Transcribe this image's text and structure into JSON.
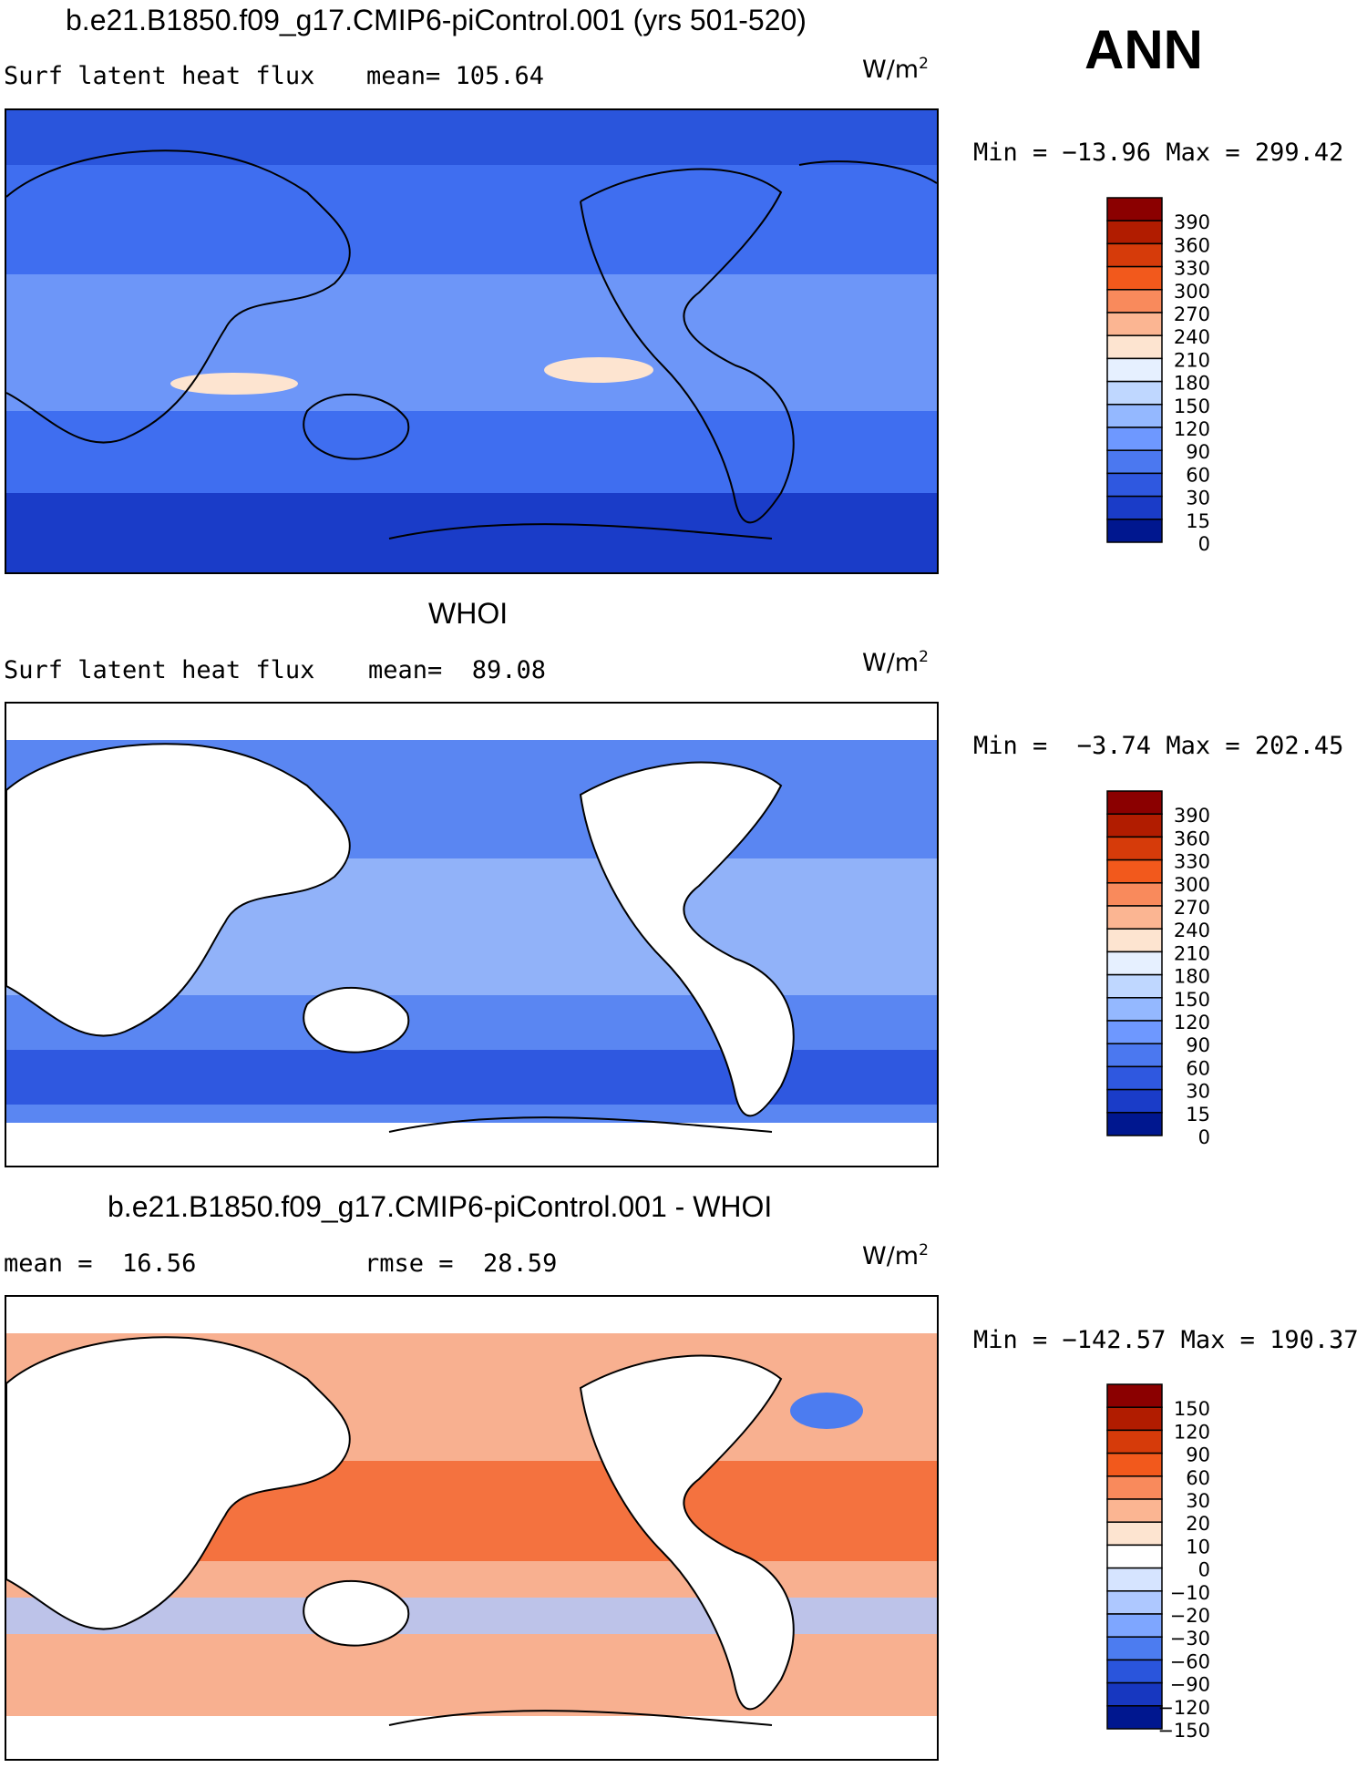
{
  "corner_label": "ANN",
  "panels": [
    {
      "id": "model",
      "title": "b.e21.B1850.f09_g17.CMIP6-piControl.001 (yrs 501-520)",
      "left_label": "Surf latent heat flux",
      "stat1": "mean= 105.64",
      "stat2": "",
      "units": "W/m",
      "units_sup": "2",
      "minmax": "Min = −13.96 Max = 299.42",
      "colorbar_labels": [
        "390",
        "360",
        "330",
        "300",
        "270",
        "240",
        "210",
        "180",
        "150",
        "120",
        "90",
        "60",
        "30",
        "15",
        "0"
      ],
      "colorbar_colors": [
        "#8b0000",
        "#b11c00",
        "#d63b0a",
        "#f2591c",
        "#f98a5c",
        "#fbb592",
        "#fde4d0",
        "#e6f0ff",
        "#bfd7ff",
        "#94b8ff",
        "#6e98ff",
        "#4b78f0",
        "#2f58e0",
        "#1a3cc8",
        "#00178f"
      ],
      "map_fill": "#3f6ef0"
    },
    {
      "id": "obs",
      "title": "WHOI",
      "left_label": "Surf latent heat flux",
      "stat1": "mean=  89.08",
      "stat2": "",
      "units": "W/m",
      "units_sup": "2",
      "minmax": "Min =  −3.74 Max = 202.45",
      "colorbar_labels": [
        "390",
        "360",
        "330",
        "300",
        "270",
        "240",
        "210",
        "180",
        "150",
        "120",
        "90",
        "60",
        "30",
        "15",
        "0"
      ],
      "colorbar_colors": [
        "#8b0000",
        "#b11c00",
        "#d63b0a",
        "#f2591c",
        "#f98a5c",
        "#fbb592",
        "#fde4d0",
        "#e6f0ff",
        "#bfd7ff",
        "#94b8ff",
        "#6e98ff",
        "#4b78f0",
        "#2f58e0",
        "#1a3cc8",
        "#00178f"
      ],
      "map_fill": "#5a86f2"
    },
    {
      "id": "diff",
      "title": "b.e21.B1850.f09_g17.CMIP6-piControl.001 - WHOI",
      "left_label": "mean =  16.56",
      "stat1": "rmse =  28.59",
      "stat2": "",
      "units": "W/m",
      "units_sup": "2",
      "minmax": "Min = −142.57 Max = 190.37",
      "colorbar_labels": [
        "150",
        "120",
        "90",
        "60",
        "30",
        "20",
        "10",
        "0",
        "−10",
        "−20",
        "−30",
        "−60",
        "−90",
        "−120",
        "−150"
      ],
      "colorbar_colors": [
        "#8b0000",
        "#b11c00",
        "#d63b0a",
        "#f2591c",
        "#f98a5c",
        "#fbb592",
        "#fde4d0",
        "#ffffff",
        "#d6e4ff",
        "#aec8ff",
        "#7ea6ff",
        "#4c7cf0",
        "#2a55dc",
        "#1737c0",
        "#00178f"
      ],
      "map_fill": "#f8b090"
    }
  ]
}
